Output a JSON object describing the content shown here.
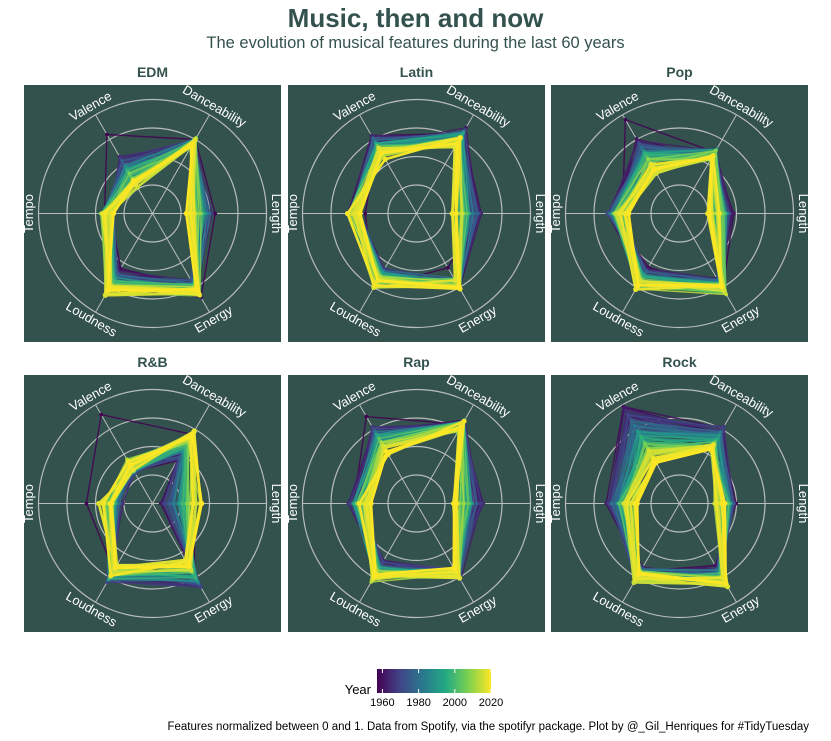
{
  "title": "Music, then and now",
  "subtitle": "The evolution of musical features during the last 60 years",
  "caption": "Features normalized between 0 and 1. Data from Spotify, via the spotifyr package. Plot by @_Gil_Henriques for #TidyTuesday",
  "colors": {
    "panel_bg": "#34524d",
    "grid": "#b8bcbb",
    "title": "#34524d"
  },
  "chart_data": {
    "type": "radar",
    "axes": [
      "Length",
      "Danceability",
      "Valence",
      "Tempo",
      "Loudness",
      "Energy"
    ],
    "range": [
      0,
      1
    ],
    "grid_rings": [
      0.25,
      0.5,
      0.75,
      1.0
    ],
    "legend": {
      "title": "Year",
      "position": "bottom",
      "range": [
        1957,
        2020
      ],
      "ticks": [
        1960,
        1980,
        2000,
        2020
      ],
      "palette": [
        "#440154",
        "#414487",
        "#2a788e",
        "#22a884",
        "#7ad151",
        "#fde725"
      ]
    },
    "panels": [
      {
        "genre": "EDM",
        "early": [
          0.5,
          0.7,
          0.55,
          0.4,
          0.6,
          0.7
        ],
        "late": [
          0.35,
          0.72,
          0.3,
          0.4,
          0.8,
          0.8
        ],
        "outlier": [
          0.55,
          0.75,
          0.8,
          0.42,
          0.7,
          0.85
        ]
      },
      {
        "genre": "Latin",
        "early": [
          0.55,
          0.82,
          0.75,
          0.55,
          0.6,
          0.7
        ],
        "late": [
          0.33,
          0.72,
          0.6,
          0.55,
          0.7,
          0.72
        ],
        "outlier": [
          0.55,
          0.82,
          0.7,
          0.45,
          0.75,
          0.55
        ]
      },
      {
        "genre": "Pop",
        "early": [
          0.42,
          0.6,
          0.72,
          0.6,
          0.6,
          0.7
        ],
        "late": [
          0.3,
          0.58,
          0.45,
          0.5,
          0.75,
          0.78
        ],
        "outlier": [
          0.38,
          0.62,
          0.95,
          0.5,
          0.65,
          0.75
        ]
      },
      {
        "genre": "R&B",
        "early": [
          0.1,
          0.45,
          0.35,
          0.3,
          0.75,
          0.85
        ],
        "late": [
          0.4,
          0.7,
          0.4,
          0.42,
          0.68,
          0.62
        ],
        "outlier": [
          0.35,
          0.7,
          0.9,
          0.58,
          0.68,
          0.75
        ]
      },
      {
        "genre": "Rap",
        "early": [
          0.55,
          0.8,
          0.75,
          0.55,
          0.62,
          0.72
        ],
        "late": [
          0.35,
          0.78,
          0.55,
          0.45,
          0.75,
          0.7
        ],
        "outlier": [
          0.58,
          0.8,
          0.88,
          0.55,
          0.68,
          0.7
        ]
      },
      {
        "genre": "Rock",
        "early": [
          0.45,
          0.75,
          0.95,
          0.62,
          0.7,
          0.68
        ],
        "late": [
          0.35,
          0.55,
          0.45,
          0.42,
          0.75,
          0.8
        ],
        "outlier": [
          0.4,
          0.68,
          0.88,
          0.55,
          0.75,
          0.82
        ]
      }
    ]
  }
}
